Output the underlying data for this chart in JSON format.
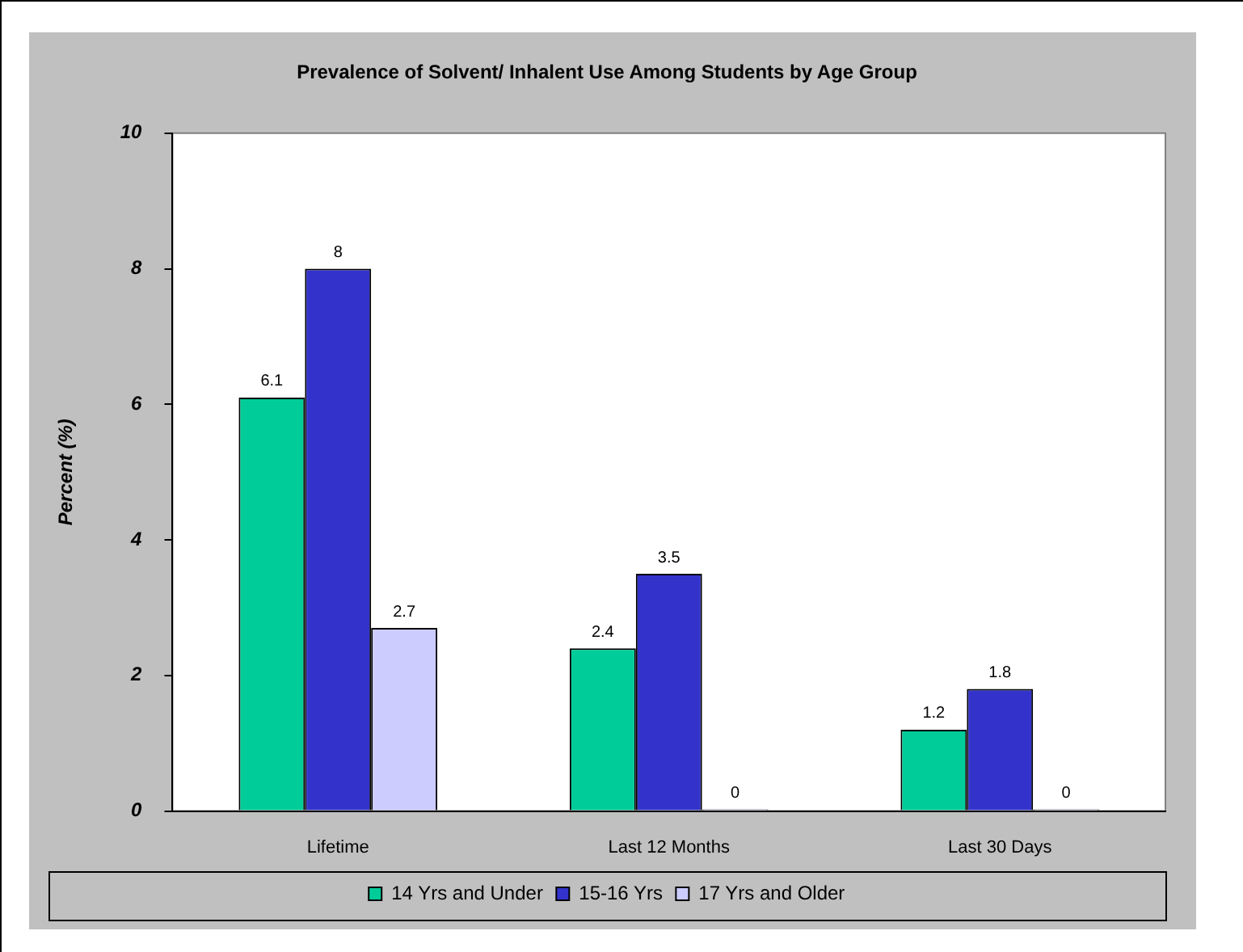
{
  "chart_data": {
    "type": "bar",
    "title": "Prevalence of Solvent/ Inhalent Use Among Students by Age Group",
    "ylabel": "Percent (%)",
    "categories": [
      "Lifetime",
      "Last 12 Months",
      "Last 30 Days"
    ],
    "series": [
      {
        "name": "14 Yrs and Under",
        "color": "#00cc99",
        "values": [
          6.1,
          2.4,
          1.2
        ]
      },
      {
        "name": "15-16 Yrs",
        "color": "#3333cc",
        "values": [
          8,
          3.5,
          1.8
        ]
      },
      {
        "name": "17 Yrs and Older",
        "color": "#ccccff",
        "values": [
          2.7,
          0,
          0
        ]
      }
    ],
    "ylim": [
      0,
      10
    ],
    "yticks": [
      0,
      2,
      4,
      6,
      8,
      10
    ],
    "grid": false,
    "legend": "bottom",
    "data_labels": true
  }
}
